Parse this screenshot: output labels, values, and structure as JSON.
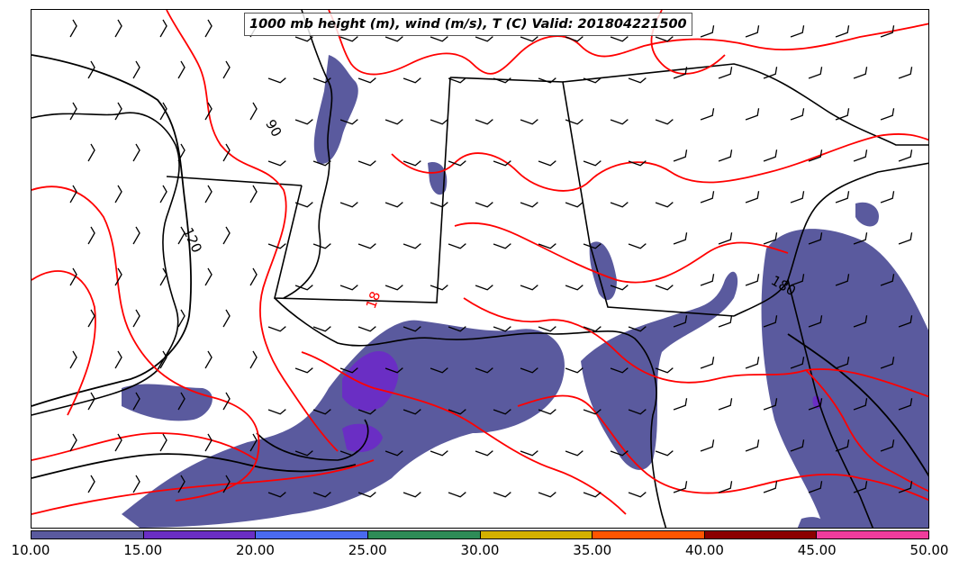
{
  "title": "1000 mb height (m), wind (m/s), T (C) Valid: 201804221500",
  "contour_labels": {
    "h90": "90",
    "h120": "120",
    "h180": "180",
    "t18": "18"
  },
  "colorbar": {
    "ticks": [
      "10.00",
      "15.00",
      "20.00",
      "25.00",
      "30.00",
      "35.00",
      "40.00",
      "45.00",
      "50.00"
    ],
    "colors": [
      "#5a5a9e",
      "#6a2ec4",
      "#4a6af0",
      "#2e8b57",
      "#d4b000",
      "#ff5500",
      "#8b0000",
      "#f03c9c"
    ]
  },
  "colors": {
    "wind_fill_10_15": "#5a5a9e",
    "wind_fill_15_20": "#6a2ec4",
    "temperature_contour": "#ff0000",
    "height_contour": "#000000",
    "boundaries": "#000000"
  },
  "icons": [
    "wind-barb-icon"
  ]
}
